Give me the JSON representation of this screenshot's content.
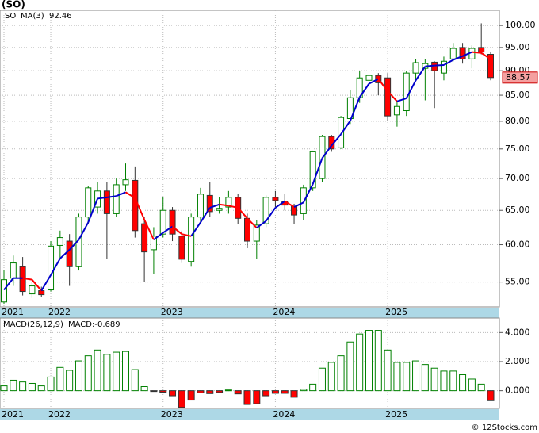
{
  "chart_data": [
    {
      "type": "candlestick",
      "title": "(SO)",
      "ticker": "SO",
      "categories": [
        "2021",
        null,
        null,
        null,
        null,
        "2022",
        null,
        null,
        null,
        null,
        null,
        null,
        null,
        null,
        null,
        null,
        null,
        "2023",
        null,
        null,
        null,
        null,
        null,
        null,
        null,
        null,
        null,
        null,
        null,
        "2024",
        null,
        null,
        null,
        null,
        null,
        null,
        null,
        null,
        null,
        null,
        null,
        "2025",
        null,
        null,
        null,
        null,
        null,
        null,
        null,
        null,
        null,
        null,
        null
      ],
      "open": [
        52.5,
        55.5,
        57,
        53.5,
        53.9,
        54,
        59.9,
        60.5,
        57,
        64,
        65.5,
        68,
        64.5,
        69,
        69.7,
        63,
        59.3,
        61.5,
        65,
        61.2,
        57.7,
        64,
        67.3,
        65,
        65.5,
        67,
        63.8,
        60.5,
        63,
        67,
        66.3,
        65.6,
        64.5,
        68.5,
        70,
        77.2,
        75.2,
        80.5,
        84.5,
        88,
        89,
        88.5,
        81.2,
        82,
        89.5,
        90.5,
        91.8,
        89.5,
        92.5,
        95,
        92.5,
        95,
        93.5
      ],
      "high": [
        56.5,
        58.5,
        58.3,
        55,
        54.4,
        60.5,
        62,
        61.5,
        64.5,
        68.8,
        69.5,
        69.5,
        70,
        72.5,
        72,
        64,
        62.5,
        67,
        65.5,
        62,
        64.5,
        68.5,
        69.5,
        67,
        68,
        67.5,
        64.5,
        63.5,
        67.3,
        68,
        67.5,
        66,
        69,
        74.7,
        77.5,
        77.5,
        81,
        86,
        90,
        92,
        89.5,
        89.5,
        84,
        90,
        92.5,
        92.5,
        92,
        93,
        96,
        96,
        95.5,
        100.5,
        94
      ],
      "low": [
        52.3,
        54.5,
        53.3,
        53,
        53.1,
        53.8,
        58,
        54.5,
        56.5,
        63,
        64.5,
        58,
        64,
        68,
        61,
        55,
        56,
        61,
        60.5,
        57.5,
        57,
        63,
        64,
        64.5,
        64.5,
        63,
        59.5,
        58,
        62.5,
        65.5,
        65,
        63,
        63.5,
        68,
        69.5,
        74.5,
        75,
        79.5,
        83.5,
        87,
        85,
        80,
        79,
        81,
        88,
        84,
        82.5,
        88,
        92,
        91.5,
        90.5,
        93.5,
        88
      ],
      "close": [
        55.3,
        57.5,
        53.8,
        54.5,
        53.4,
        59.8,
        61,
        57,
        64,
        68.5,
        68,
        64.5,
        69,
        69.8,
        62,
        59,
        61.2,
        65,
        61.5,
        58,
        64,
        67.5,
        64.8,
        65.3,
        67,
        63.8,
        60.5,
        62.8,
        67,
        66.5,
        65.8,
        64.3,
        68.5,
        74.5,
        77.2,
        75,
        80.7,
        84.5,
        88.5,
        89,
        87.5,
        81,
        82.8,
        89.5,
        91.7,
        91.5,
        90,
        92,
        94.8,
        92.5,
        94.8,
        94,
        88.57
      ],
      "up_color": "#008000",
      "down_color": "#ff0000",
      "line": {
        "name": "MA(3)",
        "value_label": "92.46",
        "up_color": "#0000cc",
        "down_color": "#ff0000",
        "values": [
          54,
          55.5,
          55.5,
          55.3,
          53.9,
          55.9,
          58.1,
          59.3,
          60.7,
          63.2,
          66.8,
          67,
          67.2,
          67.8,
          66.9,
          63.6,
          60.7,
          61.7,
          62.6,
          61.5,
          61.2,
          63.2,
          65.4,
          65.9,
          65.7,
          65.4,
          63.8,
          62.4,
          63.4,
          65.4,
          66.4,
          65.5,
          66.2,
          69.1,
          73.4,
          75.6,
          77.6,
          80.1,
          84.6,
          87.3,
          88.3,
          85.8,
          83.8,
          84.4,
          88,
          90.9,
          91.1,
          91.2,
          92.3,
          93.1,
          94,
          93.8,
          92.46
        ]
      },
      "log_scale": true,
      "ylim": [
        51.9,
        103.6
      ],
      "yticks": [
        {
          "value": 55,
          "label": "55.00"
        },
        {
          "value": 60,
          "label": "60.00"
        },
        {
          "value": 65,
          "label": "65.00"
        },
        {
          "value": 70,
          "label": "70.00"
        },
        {
          "value": 75,
          "label": "75.00"
        },
        {
          "value": 80,
          "label": "80.00"
        },
        {
          "value": 85,
          "label": "85.00"
        },
        {
          "value": 90,
          "label": "90.00"
        },
        {
          "value": 95,
          "label": "95.00"
        },
        {
          "value": 100,
          "label": "100.00"
        }
      ],
      "grid": true
    },
    {
      "type": "bar",
      "name": "MACD(26,12,9)",
      "value_label": "MACD:-0.689",
      "values": [
        0.33,
        0.72,
        0.6,
        0.5,
        0.33,
        0.94,
        1.6,
        1.4,
        2.05,
        2.4,
        2.8,
        2.5,
        2.65,
        2.7,
        1.45,
        0.28,
        -0.05,
        -0.1,
        -0.35,
        -1.15,
        -0.65,
        -0.15,
        -0.2,
        -0.12,
        0.05,
        -0.22,
        -0.95,
        -0.9,
        -0.35,
        -0.18,
        -0.18,
        -0.45,
        0.1,
        0.45,
        1.55,
        1.95,
        2.4,
        3.35,
        3.9,
        4.15,
        4.15,
        2.8,
        1.95,
        1.95,
        2.05,
        1.8,
        1.55,
        1.35,
        1.35,
        1.1,
        0.8,
        0.45,
        -0.689
      ],
      "pos_color": "#008000",
      "neg_color": "#ff0000",
      "ylim": [
        -1.22,
        5
      ],
      "yticks": [
        {
          "value": 0,
          "label": "0.000"
        },
        {
          "value": 2,
          "label": "2.000"
        },
        {
          "value": 4,
          "label": "4.000"
        }
      ],
      "grid": true
    }
  ],
  "footer": "© 12Stocks.com"
}
